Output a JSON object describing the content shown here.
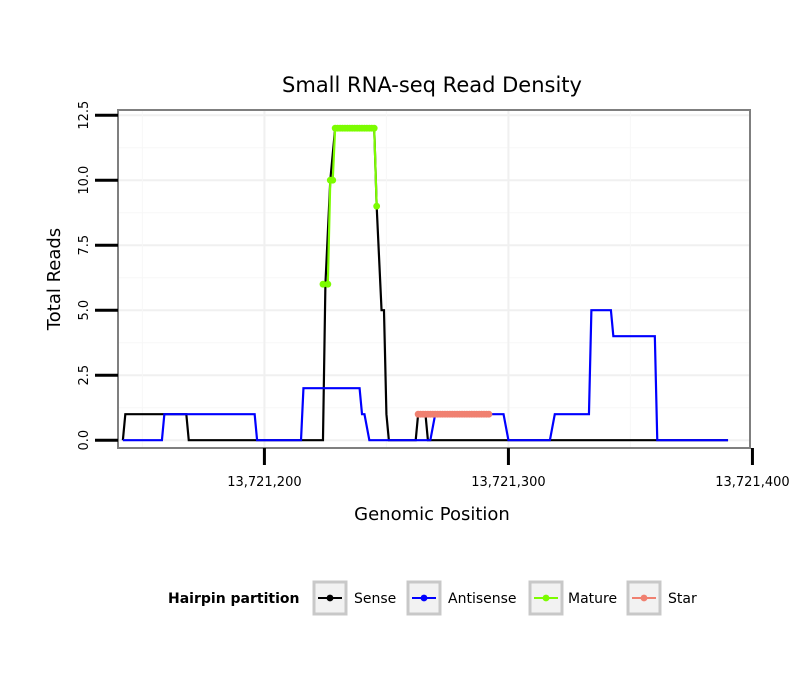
{
  "chart_data": {
    "type": "line",
    "title": "Small RNA-seq Read Density",
    "xlabel": "Genomic Position",
    "ylabel": "Total Reads",
    "xlim": [
      13721140,
      13721399
    ],
    "ylim": [
      -0.3,
      12.7
    ],
    "x_ticks": [
      {
        "value": 13721200,
        "label": "13,721,200"
      },
      {
        "value": 13721300,
        "label": "13,721,300"
      },
      {
        "value": 13721400,
        "label": "13,721,400"
      }
    ],
    "y_ticks": [
      {
        "value": 0,
        "label": "0.0"
      },
      {
        "value": 2.5,
        "label": "2.5"
      },
      {
        "value": 5,
        "label": "5.0"
      },
      {
        "value": 7.5,
        "label": "7.5"
      },
      {
        "value": 10,
        "label": "10.0"
      },
      {
        "value": 12.5,
        "label": "12.5"
      }
    ],
    "grid": true,
    "legend": {
      "title": "Hairpin partition",
      "position": "bottom",
      "entries": [
        {
          "label": "Sense",
          "color": "#000000"
        },
        {
          "label": "Antisense",
          "color": "#0000ff"
        },
        {
          "label": "Mature",
          "color": "#7cfc00"
        },
        {
          "label": "Star",
          "color": "#f08070"
        }
      ]
    },
    "series": [
      {
        "name": "Sense",
        "color": "#000000",
        "points": [
          [
            13721142,
            0
          ],
          [
            13721143,
            1
          ],
          [
            13721162,
            1
          ],
          [
            13721168,
            1
          ],
          [
            13721169,
            0
          ],
          [
            13721224,
            0
          ],
          [
            13721225,
            6
          ],
          [
            13721227,
            10
          ],
          [
            13721229,
            12
          ],
          [
            13721245,
            12
          ],
          [
            13721246,
            9
          ],
          [
            13721248,
            5
          ],
          [
            13721249,
            5
          ],
          [
            13721250,
            1
          ],
          [
            13721251,
            0
          ],
          [
            13721262,
            0
          ],
          [
            13721263,
            1
          ],
          [
            13721266,
            1
          ],
          [
            13721267,
            0
          ],
          [
            13721390,
            0
          ]
        ]
      },
      {
        "name": "Antisense",
        "color": "#0000ff",
        "points": [
          [
            13721142,
            0
          ],
          [
            13721158,
            0
          ],
          [
            13721159,
            1
          ],
          [
            13721196,
            1
          ],
          [
            13721197,
            0
          ],
          [
            13721215,
            0
          ],
          [
            13721216,
            2
          ],
          [
            13721239,
            2
          ],
          [
            13721240,
            1
          ],
          [
            13721241,
            1
          ],
          [
            13721243,
            0
          ],
          [
            13721268,
            0
          ],
          [
            13721270,
            1
          ],
          [
            13721298,
            1
          ],
          [
            13721300,
            0
          ],
          [
            13721317,
            0
          ],
          [
            13721319,
            1
          ],
          [
            13721333,
            1
          ],
          [
            13721334,
            5
          ],
          [
            13721342,
            5
          ],
          [
            13721343,
            4
          ],
          [
            13721360,
            4
          ],
          [
            13721361,
            0
          ],
          [
            13721390,
            0
          ]
        ]
      },
      {
        "name": "Mature",
        "color": "#7cfc00",
        "points": [
          [
            13721224,
            6
          ],
          [
            13721226,
            6
          ],
          [
            13721227,
            10
          ],
          [
            13721228,
            10
          ],
          [
            13721229,
            12
          ],
          [
            13721230,
            12
          ],
          [
            13721231,
            12
          ],
          [
            13721232,
            12
          ],
          [
            13721233,
            12
          ],
          [
            13721234,
            12
          ],
          [
            13721235,
            12
          ],
          [
            13721236,
            12
          ],
          [
            13721237,
            12
          ],
          [
            13721238,
            12
          ],
          [
            13721239,
            12
          ],
          [
            13721240,
            12
          ],
          [
            13721241,
            12
          ],
          [
            13721242,
            12
          ],
          [
            13721243,
            12
          ],
          [
            13721244,
            12
          ],
          [
            13721245,
            12
          ],
          [
            13721246,
            9
          ]
        ]
      },
      {
        "name": "Star",
        "color": "#f08070",
        "points": [
          [
            13721263,
            1
          ],
          [
            13721264,
            1
          ],
          [
            13721265,
            1
          ],
          [
            13721266,
            1
          ],
          [
            13721267,
            1
          ],
          [
            13721268,
            1
          ],
          [
            13721269,
            1
          ],
          [
            13721270,
            1
          ],
          [
            13721271,
            1
          ],
          [
            13721272,
            1
          ],
          [
            13721273,
            1
          ],
          [
            13721274,
            1
          ],
          [
            13721275,
            1
          ],
          [
            13721276,
            1
          ],
          [
            13721277,
            1
          ],
          [
            13721278,
            1
          ],
          [
            13721279,
            1
          ],
          [
            13721280,
            1
          ],
          [
            13721281,
            1
          ],
          [
            13721282,
            1
          ],
          [
            13721283,
            1
          ],
          [
            13721284,
            1
          ],
          [
            13721285,
            1
          ],
          [
            13721286,
            1
          ],
          [
            13721287,
            1
          ],
          [
            13721288,
            1
          ],
          [
            13721289,
            1
          ],
          [
            13721290,
            1
          ],
          [
            13721291,
            1
          ],
          [
            13721292,
            1
          ]
        ]
      }
    ]
  }
}
